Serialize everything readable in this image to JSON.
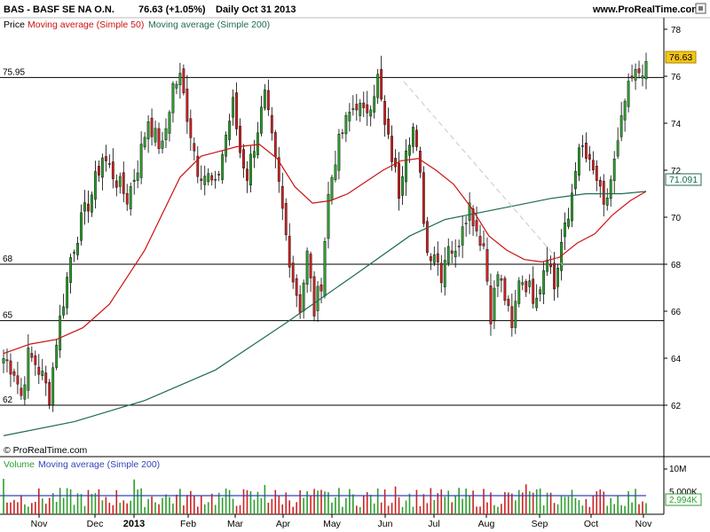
{
  "header": {
    "symbol": "BAS - BASF SE NA O.N.",
    "quote": "76.63 (+1.05%)",
    "period": "Daily  Oct 31 2013",
    "site": "www.ProRealTime.com",
    "icon": "maximize-icon"
  },
  "legend": {
    "price": "Price",
    "ma50": "Moving average (Simple 50)",
    "ma200": "Moving average (Simple 200)",
    "volume": "Volume",
    "vol_ma": "Moving average (Simple 200)"
  },
  "watermark": "© ProRealTime.com",
  "colors": {
    "up": "#2e9e2e",
    "down": "#cc2222",
    "ma50": "#cc1111",
    "ma200": "#1d6b4f",
    "vol_ma": "#3344bb",
    "last_price_bg": "#f5c518",
    "ma200_box_border": "#1d6b4f"
  },
  "chart_data": [
    {
      "type": "candlestick",
      "title": "BAS - BASF SE NA O.N.",
      "period": "Daily",
      "date": "Oct 31 2013",
      "last_close": 76.63,
      "change_pct": 1.05,
      "ylim": [
        60,
        78
      ],
      "yticks": [
        62,
        64,
        66,
        68,
        70,
        72,
        74,
        76,
        78
      ],
      "xticks": [
        "Nov",
        "Dec",
        "2013",
        "Feb",
        "Mar",
        "Apr",
        "May",
        "Jun",
        "Jul",
        "Aug",
        "Sep",
        "Oct",
        "Nov"
      ],
      "levels": [
        {
          "label": "75.95",
          "value": 75.95
        },
        {
          "label": "68",
          "value": 68
        },
        {
          "label": "65",
          "value": 65.6
        },
        {
          "label": "62",
          "value": 62
        }
      ],
      "series": [
        {
          "name": "Price",
          "kind": "candles",
          "points": [
            [
              0,
              64.0
            ],
            [
              6,
              63.5
            ],
            [
              10,
              62.4
            ],
            [
              14,
              64.1
            ],
            [
              18,
              63.8
            ],
            [
              22,
              63.2
            ],
            [
              26,
              62.4
            ],
            [
              30,
              64.8
            ],
            [
              34,
              66.5
            ],
            [
              38,
              68.3
            ],
            [
              44,
              69.8
            ],
            [
              50,
              71.0
            ],
            [
              56,
              72.6
            ],
            [
              60,
              72.1
            ],
            [
              66,
              71.3
            ],
            [
              70,
              70.8
            ],
            [
              76,
              72.2
            ],
            [
              82,
              74.2
            ],
            [
              86,
              73.4
            ],
            [
              90,
              72.9
            ],
            [
              96,
              75.6
            ],
            [
              100,
              75.9
            ],
            [
              104,
              74.4
            ],
            [
              110,
              72.1
            ],
            [
              116,
              71.7
            ],
            [
              120,
              71.2
            ],
            [
              126,
              73.5
            ],
            [
              130,
              74.8
            ],
            [
              134,
              72.8
            ],
            [
              138,
              71.8
            ],
            [
              144,
              73.8
            ],
            [
              148,
              75.1
            ],
            [
              152,
              73.2
            ],
            [
              156,
              71.3
            ],
            [
              160,
              69.2
            ],
            [
              164,
              67.4
            ],
            [
              168,
              66.2
            ],
            [
              172,
              68.4
            ],
            [
              176,
              66.0
            ],
            [
              180,
              67.3
            ],
            [
              184,
              70.9
            ],
            [
              188,
              72.6
            ],
            [
              192,
              73.6
            ],
            [
              196,
              74.4
            ],
            [
              200,
              74.9
            ],
            [
              204,
              74.3
            ],
            [
              208,
              75.0
            ],
            [
              212,
              75.9
            ],
            [
              216,
              73.8
            ],
            [
              220,
              72.6
            ],
            [
              224,
              71.1
            ],
            [
              228,
              73.2
            ],
            [
              232,
              73.8
            ],
            [
              236,
              71.6
            ],
            [
              240,
              68.5
            ],
            [
              244,
              68.6
            ],
            [
              248,
              67.6
            ],
            [
              252,
              69.0
            ],
            [
              256,
              68.3
            ],
            [
              260,
              69.9
            ],
            [
              264,
              70.5
            ],
            [
              268,
              69.5
            ],
            [
              272,
              68.8
            ],
            [
              276,
              65.9
            ],
            [
              280,
              67.6
            ],
            [
              284,
              66.6
            ],
            [
              288,
              65.1
            ],
            [
              292,
              67.5
            ],
            [
              296,
              67.2
            ],
            [
              300,
              66.7
            ],
            [
              304,
              67.2
            ],
            [
              308,
              68.6
            ],
            [
              312,
              67.0
            ],
            [
              316,
              68.9
            ],
            [
              320,
              69.9
            ],
            [
              324,
              72.3
            ],
            [
              328,
              72.9
            ],
            [
              332,
              72.1
            ],
            [
              336,
              71.6
            ],
            [
              340,
              70.2
            ],
            [
              344,
              71.6
            ],
            [
              348,
              73.0
            ],
            [
              352,
              74.9
            ],
            [
              356,
              75.8
            ],
            [
              360,
              76.2
            ],
            [
              364,
              76.6
            ]
          ]
        },
        {
          "name": "Moving average (Simple 50)",
          "kind": "line",
          "points": [
            [
              0,
              64.2
            ],
            [
              15,
              64.6
            ],
            [
              30,
              64.8
            ],
            [
              45,
              65.3
            ],
            [
              60,
              66.3
            ],
            [
              80,
              68.6
            ],
            [
              100,
              71.7
            ],
            [
              112,
              72.6
            ],
            [
              122,
              72.8
            ],
            [
              132,
              73.0
            ],
            [
              145,
              73.1
            ],
            [
              155,
              72.5
            ],
            [
              165,
              71.3
            ],
            [
              175,
              70.6
            ],
            [
              185,
              70.7
            ],
            [
              195,
              71.0
            ],
            [
              205,
              71.5
            ],
            [
              215,
              72.0
            ],
            [
              225,
              72.4
            ],
            [
              235,
              72.5
            ],
            [
              245,
              72.0
            ],
            [
              255,
              71.4
            ],
            [
              265,
              70.4
            ],
            [
              275,
              69.2
            ],
            [
              285,
              68.6
            ],
            [
              295,
              68.2
            ],
            [
              305,
              68.1
            ],
            [
              315,
              68.3
            ],
            [
              325,
              68.9
            ],
            [
              335,
              69.3
            ],
            [
              345,
              70.1
            ],
            [
              355,
              70.7
            ],
            [
              364,
              71.1
            ]
          ]
        },
        {
          "name": "Moving average (Simple 200)",
          "kind": "line",
          "points": [
            [
              0,
              60.7
            ],
            [
              40,
              61.3
            ],
            [
              80,
              62.2
            ],
            [
              120,
              63.5
            ],
            [
              160,
              65.5
            ],
            [
              200,
              67.6
            ],
            [
              230,
              69.2
            ],
            [
              250,
              69.9
            ],
            [
              270,
              70.2
            ],
            [
              290,
              70.5
            ],
            [
              310,
              70.8
            ],
            [
              330,
              71.0
            ],
            [
              350,
              71.0
            ],
            [
              364,
              71.1
            ]
          ]
        }
      ],
      "annotations": {
        "last_price_label": "76.63",
        "ma200_label": "71.091"
      }
    },
    {
      "type": "bar",
      "title": "Volume",
      "ylim_label_top": "10M",
      "ylim_label_mid": "5,000K",
      "last_ma_label": "2,994K",
      "series": [
        {
          "name": "Moving average (Simple 200)",
          "approx_value": 3200000
        }
      ]
    }
  ]
}
